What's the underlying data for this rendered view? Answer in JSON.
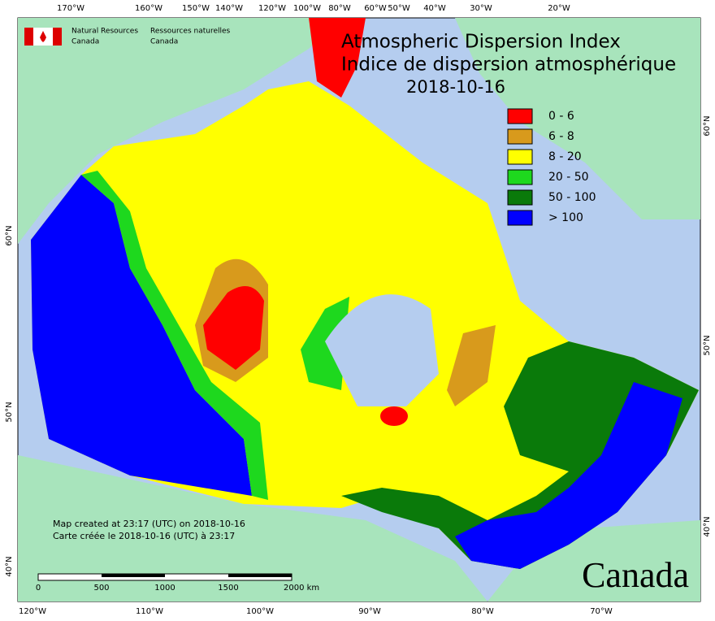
{
  "header": {
    "agency_en": [
      "Natural Resources",
      "Canada"
    ],
    "agency_fr": [
      "Ressources naturelles",
      "Canada"
    ]
  },
  "title": [
    "Atmospheric Dispersion Index",
    "Indice de dispersion atmosphérique",
    "2018-10-16"
  ],
  "legend": [
    {
      "label": "0 - 6",
      "color": "#ff0000"
    },
    {
      "label": "6 - 8",
      "color": "#d89a1c"
    },
    {
      "label": "8 - 20",
      "color": "#ffff00"
    },
    {
      "label": "20 - 50",
      "color": "#1ed81e"
    },
    {
      "label": "50 - 100",
      "color": "#0a7a0a"
    },
    {
      "label": "> 100",
      "color": "#0000ff"
    }
  ],
  "top_longitudes": [
    "170°W",
    "160°W",
    "150°W",
    "140°W",
    "120°W",
    "100°W",
    "80°W",
    "60°W",
    "50°W",
    "40°W",
    "30°W",
    "20°W"
  ],
  "bottom_longitudes": [
    "120°W",
    "110°W",
    "100°W",
    "90°W",
    "80°W",
    "70°W"
  ],
  "left_latitudes": [
    "60°N",
    "50°N",
    "40°N"
  ],
  "right_latitudes": [
    "60°N",
    "50°N",
    "40°N"
  ],
  "footer": [
    "Map created at 23:17 (UTC) on 2018-10-16",
    "Carte créée le 2018-10-16 (UTC) à 23:17"
  ],
  "scale": [
    "0",
    "500",
    "1000",
    "1500",
    "2000 km"
  ],
  "wordmark": "Canada"
}
